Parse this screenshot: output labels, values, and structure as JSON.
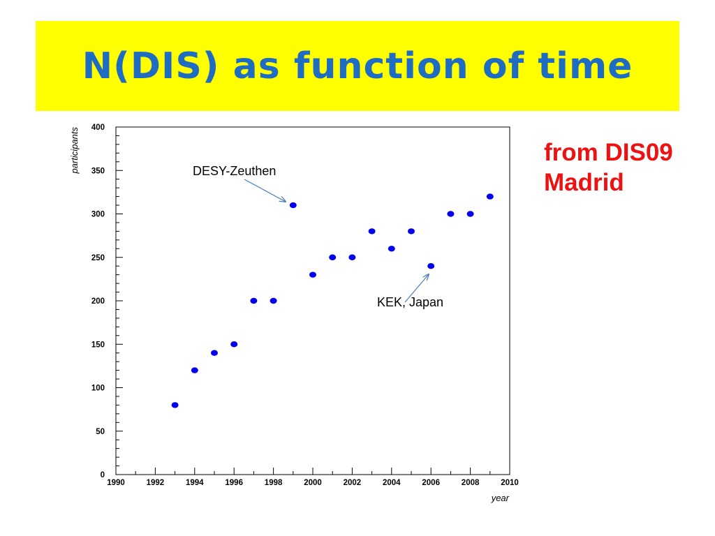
{
  "slide": {
    "title": "N(DIS) as function of time",
    "source_note": [
      "from DIS09",
      "Madrid"
    ],
    "colors": {
      "title_bg": "#ffff00",
      "title_text": "#1f6cc3",
      "note_text": "#ee1111",
      "points": "#0000ee",
      "arrows": "#4a7ab5"
    }
  },
  "chart_data": {
    "type": "scatter",
    "title": "",
    "xlabel": "year",
    "ylabel": "participants",
    "xlim": [
      1990,
      2010
    ],
    "ylim": [
      0,
      400
    ],
    "x_ticks": [
      "1990",
      "1992",
      "1994",
      "1996",
      "1998",
      "2000",
      "2002",
      "2004",
      "2006",
      "2008",
      "2010"
    ],
    "y_ticks": [
      "0",
      "50",
      "100",
      "150",
      "200",
      "250",
      "300",
      "350",
      "400"
    ],
    "grid": false,
    "series": [
      {
        "x": [
          1993,
          1994,
          1995,
          1996,
          1997,
          1998,
          1999,
          2000,
          2001,
          2002,
          2003,
          2004,
          2005,
          2006,
          2007,
          2008,
          2009
        ],
        "y": [
          80,
          120,
          140,
          150,
          200,
          200,
          310,
          230,
          250,
          250,
          280,
          260,
          280,
          240,
          300,
          300,
          320
        ]
      }
    ],
    "annotations": [
      {
        "text": "DESY-Zeuthen",
        "x": 1999,
        "y": 310
      },
      {
        "text": "KEK, Japan",
        "x": 2006,
        "y": 240
      }
    ]
  }
}
